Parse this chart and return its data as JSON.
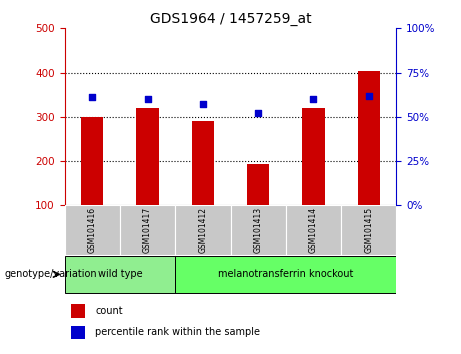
{
  "title": "GDS1964 / 1457259_at",
  "samples": [
    "GSM101416",
    "GSM101417",
    "GSM101412",
    "GSM101413",
    "GSM101414",
    "GSM101415"
  ],
  "counts": [
    300,
    320,
    290,
    193,
    320,
    403
  ],
  "percentile_ranks": [
    61,
    60,
    57,
    52,
    60,
    62
  ],
  "ylim_left": [
    100,
    500
  ],
  "ylim_right": [
    0,
    100
  ],
  "yticks_left": [
    100,
    200,
    300,
    400,
    500
  ],
  "yticks_right": [
    0,
    25,
    50,
    75,
    100
  ],
  "bar_color": "#CC0000",
  "dot_color": "#0000CC",
  "bar_width": 0.4,
  "left_axis_color": "#CC0000",
  "right_axis_color": "#0000CC",
  "legend_items": [
    "count",
    "percentile rank within the sample"
  ],
  "genotype_label": "genotype/variation",
  "sample_box_color": "#C8C8C8",
  "wild_type_color": "#90EE90",
  "knockout_color": "#66FF66",
  "wild_type_label": "wild type",
  "knockout_label": "melanotransferrin knockout",
  "wild_type_indices": [
    0,
    1
  ],
  "knockout_indices": [
    2,
    3,
    4,
    5
  ]
}
